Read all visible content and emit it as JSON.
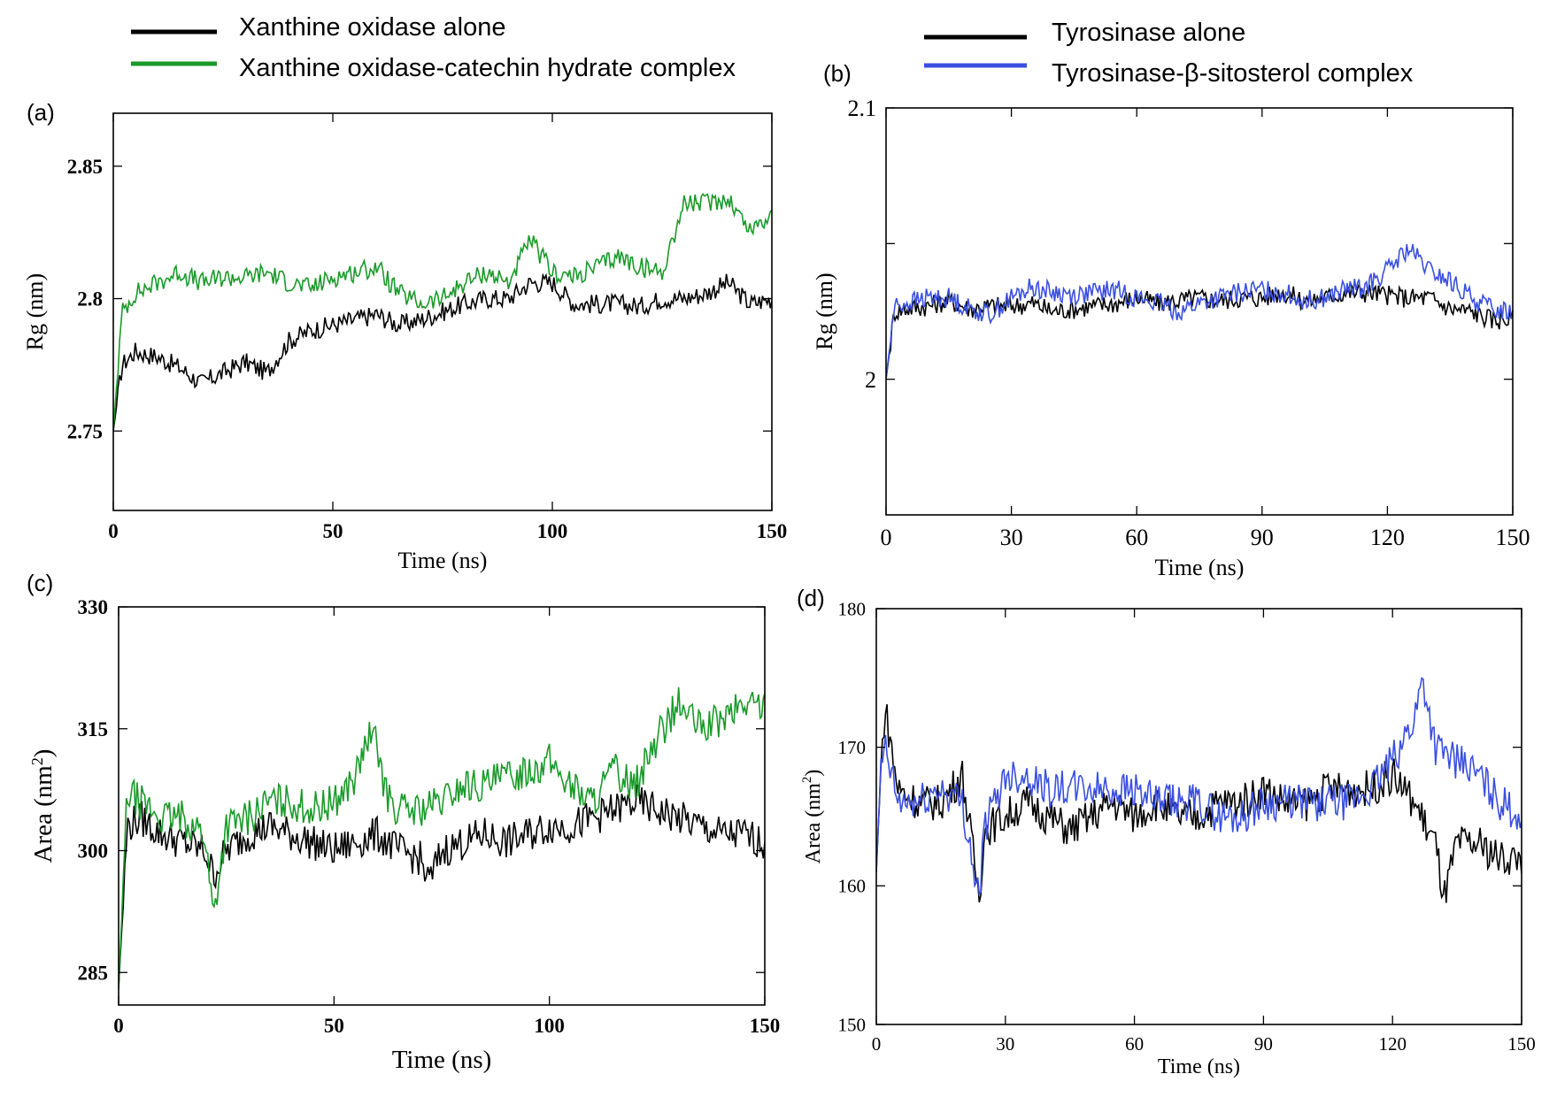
{
  "legend_left": {
    "items": [
      {
        "label": "Xanthine oxidase alone",
        "color": "#000000"
      },
      {
        "label": "Xanthine oxidase-catechin hydrate complex",
        "color": "#1a9a2a"
      }
    ]
  },
  "legend_right": {
    "items": [
      {
        "label": "Tyrosinase alone",
        "color": "#000000"
      },
      {
        "label": "Tyrosinase-β-sitosterol complex",
        "color": "#3a4fe0"
      }
    ]
  },
  "chart_data": [
    {
      "panel": "(a)",
      "type": "line",
      "title": "",
      "xlabel": "Time (ns)",
      "ylabel": "Rg (nm)",
      "xlim": [
        0,
        150
      ],
      "ylim": [
        2.72,
        2.87
      ],
      "xticks": [
        0,
        50,
        100,
        150
      ],
      "xtick_labels": [
        "0",
        "50",
        "100",
        "150"
      ],
      "yticks": [
        2.75,
        2.8,
        2.85
      ],
      "ytick_labels": [
        "2.75",
        "2.8",
        "2.85"
      ],
      "grid": false,
      "series": [
        {
          "name": "Xanthine oxidase alone",
          "color": "#000000",
          "x": [
            0,
            2,
            5,
            10,
            15,
            20,
            25,
            30,
            35,
            40,
            45,
            50,
            55,
            60,
            65,
            70,
            75,
            80,
            85,
            90,
            95,
            100,
            105,
            110,
            115,
            120,
            125,
            130,
            135,
            140,
            145,
            150
          ],
          "y": [
            2.75,
            2.775,
            2.78,
            2.778,
            2.774,
            2.768,
            2.772,
            2.776,
            2.772,
            2.784,
            2.788,
            2.79,
            2.792,
            2.794,
            2.79,
            2.792,
            2.795,
            2.798,
            2.8,
            2.8,
            2.806,
            2.806,
            2.798,
            2.798,
            2.798,
            2.797,
            2.8,
            2.8,
            2.802,
            2.806,
            2.798,
            2.8
          ]
        },
        {
          "name": "Xanthine oxidase-catechin hydrate complex",
          "color": "#1a9a2a",
          "x": [
            0,
            2,
            5,
            10,
            15,
            20,
            25,
            30,
            35,
            40,
            45,
            50,
            55,
            60,
            65,
            70,
            75,
            80,
            85,
            90,
            95,
            100,
            105,
            110,
            115,
            120,
            125,
            130,
            135,
            140,
            145,
            150
          ],
          "y": [
            2.75,
            2.795,
            2.802,
            2.806,
            2.81,
            2.806,
            2.808,
            2.808,
            2.81,
            2.806,
            2.804,
            2.808,
            2.81,
            2.812,
            2.802,
            2.798,
            2.8,
            2.806,
            2.81,
            2.806,
            2.822,
            2.81,
            2.808,
            2.812,
            2.816,
            2.812,
            2.81,
            2.836,
            2.836,
            2.838,
            2.826,
            2.832
          ]
        }
      ]
    },
    {
      "panel": "(b)",
      "type": "line",
      "title": "",
      "xlabel": "Time (ns)",
      "ylabel": "Rg (nm)",
      "xlim": [
        0,
        150
      ],
      "ylim": [
        1.95,
        2.1
      ],
      "xticks": [
        0,
        30,
        60,
        90,
        120,
        150
      ],
      "xtick_labels": [
        "0",
        "30",
        "60",
        "90",
        "120",
        "150"
      ],
      "yticks": [
        2.0,
        2.05,
        2.1
      ],
      "ytick_labels": [
        "2",
        "",
        "2.1"
      ],
      "grid": false,
      "series": [
        {
          "name": "Tyrosinase alone",
          "color": "#000000",
          "x": [
            0,
            2,
            5,
            10,
            15,
            20,
            25,
            30,
            35,
            40,
            45,
            50,
            55,
            60,
            65,
            70,
            75,
            80,
            85,
            90,
            95,
            100,
            105,
            110,
            115,
            120,
            125,
            130,
            135,
            140,
            145,
            150
          ],
          "y": [
            2.0,
            2.025,
            2.026,
            2.027,
            2.029,
            2.026,
            2.027,
            2.027,
            2.028,
            2.025,
            2.026,
            2.027,
            2.028,
            2.03,
            2.028,
            2.029,
            2.03,
            2.029,
            2.03,
            2.03,
            2.032,
            2.029,
            2.03,
            2.032,
            2.032,
            2.031,
            2.03,
            2.03,
            2.026,
            2.025,
            2.022,
            2.022
          ]
        },
        {
          "name": "Tyrosinase-β-sitosterol complex",
          "color": "#3a4fe0",
          "x": [
            0,
            2,
            5,
            10,
            15,
            20,
            25,
            30,
            35,
            40,
            45,
            50,
            55,
            60,
            65,
            70,
            75,
            80,
            85,
            90,
            95,
            100,
            105,
            110,
            115,
            120,
            125,
            130,
            135,
            140,
            145,
            150
          ],
          "y": [
            2.0,
            2.027,
            2.028,
            2.03,
            2.03,
            2.026,
            2.024,
            2.03,
            2.034,
            2.032,
            2.031,
            2.032,
            2.033,
            2.03,
            2.028,
            2.025,
            2.028,
            2.03,
            2.032,
            2.033,
            2.032,
            2.029,
            2.03,
            2.033,
            2.034,
            2.04,
            2.048,
            2.04,
            2.036,
            2.03,
            2.026,
            2.025
          ]
        }
      ]
    },
    {
      "panel": "(c)",
      "type": "line",
      "title": "",
      "xlabel": "Time (ns)",
      "ylabel": "Area (nm²)",
      "ylabel_base": "Area (nm",
      "ylabel_sup": "2",
      "ylabel_close": ")",
      "xlim": [
        0,
        150
      ],
      "ylim": [
        281,
        330
      ],
      "xticks": [
        0,
        50,
        100,
        150
      ],
      "xtick_labels": [
        "0",
        "50",
        "100",
        "150"
      ],
      "yticks": [
        285,
        300,
        315,
        330
      ],
      "ytick_labels": [
        "285",
        "300",
        "315",
        "330"
      ],
      "grid": false,
      "series": [
        {
          "name": "Xanthine oxidase alone",
          "color": "#000000",
          "x": [
            0,
            2,
            5,
            10,
            15,
            20,
            22,
            25,
            30,
            35,
            40,
            45,
            50,
            55,
            60,
            65,
            70,
            72,
            75,
            80,
            85,
            90,
            95,
            100,
            105,
            110,
            115,
            120,
            125,
            130,
            135,
            140,
            145,
            150
          ],
          "y": [
            283,
            303,
            304,
            302,
            301,
            300,
            297,
            300,
            302,
            303,
            302,
            301,
            300,
            301,
            302,
            300,
            299,
            296,
            300,
            301,
            302,
            301,
            302,
            303,
            303,
            304,
            305,
            306,
            305,
            304,
            303,
            302,
            302,
            301
          ]
        },
        {
          "name": "Xanthine oxidase-catechin hydrate complex",
          "color": "#1a9a2a",
          "x": [
            0,
            2,
            5,
            10,
            15,
            20,
            22,
            25,
            30,
            35,
            40,
            45,
            50,
            55,
            58,
            60,
            62,
            65,
            70,
            75,
            80,
            85,
            90,
            95,
            100,
            105,
            110,
            115,
            120,
            125,
            130,
            135,
            140,
            145,
            150
          ],
          "y": [
            283,
            307,
            306,
            304,
            304,
            302,
            292,
            303,
            304,
            306,
            306,
            305,
            306,
            309,
            314,
            313,
            307,
            305,
            305,
            306,
            308,
            308,
            309,
            310,
            311,
            308,
            306,
            310,
            308,
            314,
            318,
            315,
            316,
            318,
            318
          ]
        }
      ]
    },
    {
      "panel": "(d)",
      "type": "line",
      "title": "",
      "xlabel": "Time (ns)",
      "ylabel": "Area (nm²)",
      "ylabel_base": "Area (nm",
      "ylabel_sup": "2",
      "ylabel_close": ")",
      "xlim": [
        0,
        150
      ],
      "ylim": [
        150,
        180
      ],
      "xticks": [
        0,
        30,
        60,
        90,
        120,
        150
      ],
      "xtick_labels": [
        "0",
        "30",
        "60",
        "90",
        "120",
        "150"
      ],
      "yticks": [
        150,
        160,
        170,
        180
      ],
      "ytick_labels": [
        "150",
        "160",
        "170",
        "180"
      ],
      "grid": false,
      "series": [
        {
          "name": "Tyrosinase alone",
          "color": "#000000",
          "x": [
            0,
            1,
            2,
            5,
            10,
            15,
            20,
            24,
            25,
            30,
            35,
            40,
            45,
            50,
            55,
            60,
            65,
            70,
            75,
            80,
            85,
            90,
            95,
            100,
            105,
            110,
            115,
            120,
            125,
            130,
            132,
            135,
            140,
            145,
            150
          ],
          "y": [
            161,
            168,
            173,
            167,
            166,
            166,
            168,
            159,
            164,
            165,
            166,
            165,
            164,
            165,
            166,
            165,
            166,
            165,
            165,
            166,
            166,
            167,
            166,
            166,
            167,
            167,
            167,
            168,
            166,
            163,
            159,
            163,
            163,
            162,
            162
          ]
        },
        {
          "name": "Tyrosinase-β-sitosterol complex",
          "color": "#3a4fe0",
          "x": [
            0,
            1,
            2,
            5,
            10,
            15,
            20,
            24,
            25,
            30,
            35,
            40,
            45,
            50,
            55,
            60,
            65,
            70,
            75,
            80,
            85,
            90,
            95,
            100,
            105,
            110,
            115,
            120,
            125,
            127,
            130,
            135,
            140,
            145,
            150
          ],
          "y": [
            161,
            168,
            170,
            166,
            166,
            167,
            166,
            159,
            164,
            168,
            168,
            167,
            167,
            167,
            167,
            167,
            166,
            166,
            166,
            165,
            165,
            166,
            166,
            166,
            166,
            166,
            167,
            169,
            172,
            175,
            170,
            169,
            168,
            166,
            165
          ]
        }
      ]
    }
  ]
}
